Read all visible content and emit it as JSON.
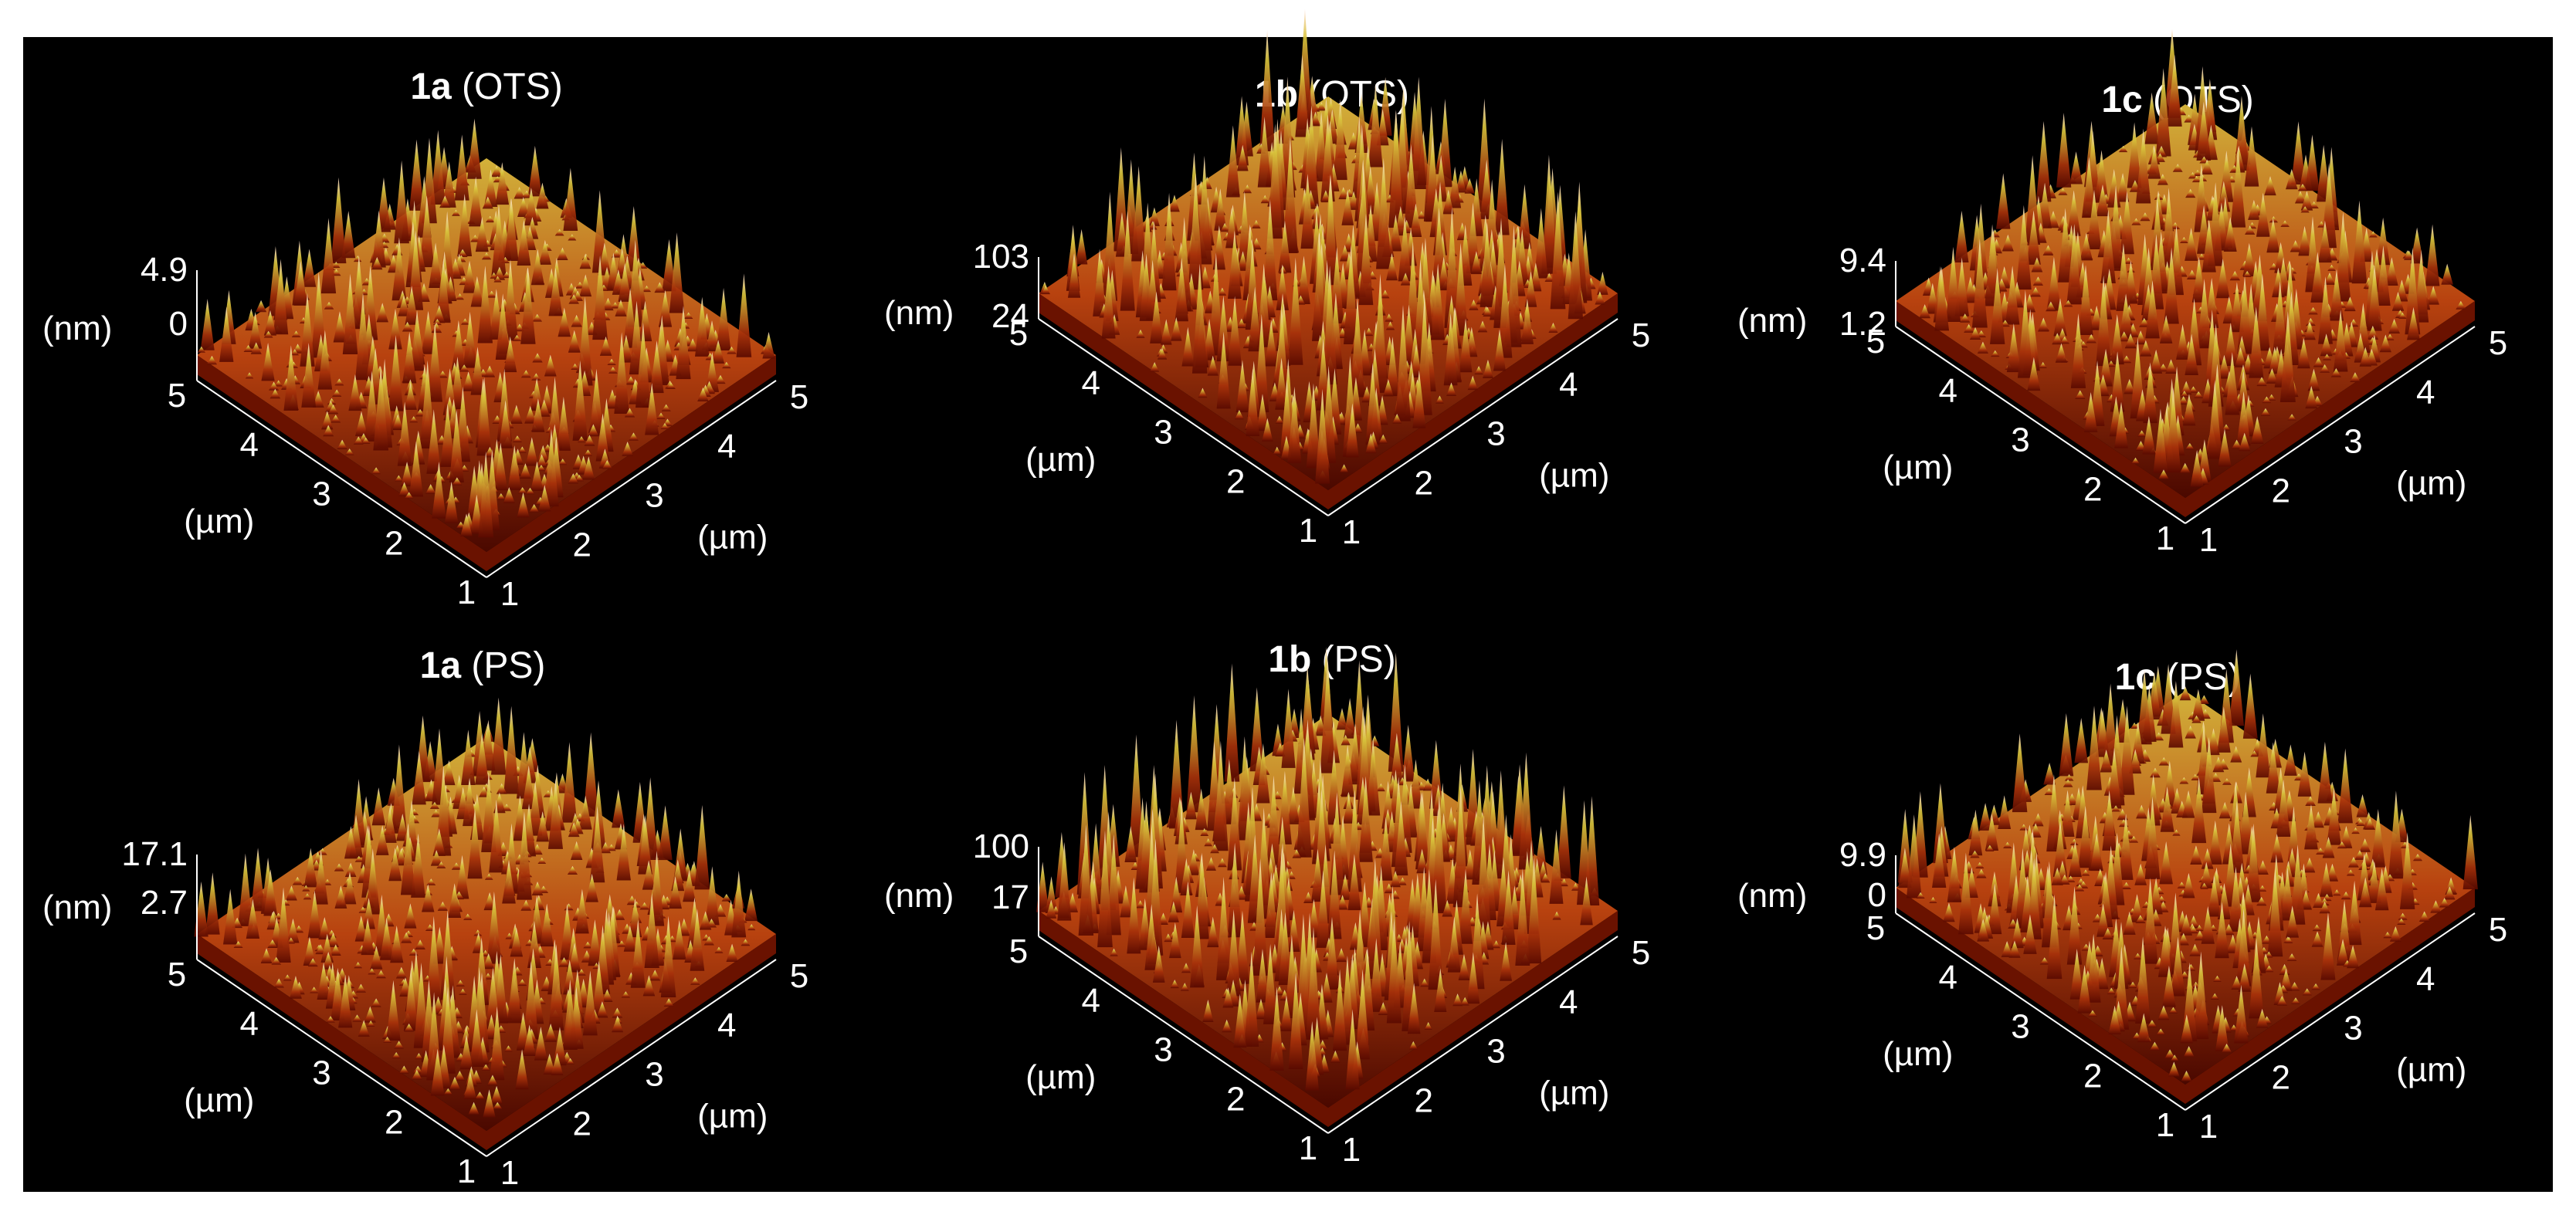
{
  "colors": {
    "background": "#000000",
    "text": "#ffffff",
    "surface_low": "#5a0a00",
    "surface_mid": "#b63a0c",
    "surface_high": "#c8b02a",
    "surface_peak": "#ffd6d0"
  },
  "panels": [
    {
      "label": "1a",
      "substrate": "(OTS)",
      "z_unit": "(nm)",
      "z_ticks": [
        "4.9",
        "0"
      ],
      "xy_unit": "(µm)",
      "left_axis_ticks": [
        "5",
        "4",
        "3",
        "2",
        "1"
      ],
      "right_axis_ticks": [
        "1",
        "2",
        "3",
        "4",
        "5"
      ]
    },
    {
      "label": "1b",
      "substrate": "(OTS)",
      "z_unit": "(nm)",
      "z_ticks": [
        "103",
        "24"
      ],
      "xy_unit": "(µm)",
      "left_axis_ticks": [
        "5",
        "4",
        "3",
        "2",
        "1"
      ],
      "right_axis_ticks": [
        "1",
        "2",
        "3",
        "4",
        "5"
      ]
    },
    {
      "label": "1c",
      "substrate": "(OTS)",
      "z_unit": "(nm)",
      "z_ticks": [
        "9.4",
        "1.2"
      ],
      "xy_unit": "(µm)",
      "left_axis_ticks": [
        "5",
        "4",
        "3",
        "2",
        "1"
      ],
      "right_axis_ticks": [
        "1",
        "2",
        "3",
        "4",
        "5"
      ]
    },
    {
      "label": "1a",
      "substrate": "(PS)",
      "z_unit": "(nm)",
      "z_ticks": [
        "17.1",
        "2.7"
      ],
      "xy_unit": "(µm)",
      "left_axis_ticks": [
        "5",
        "4",
        "3",
        "2",
        "1"
      ],
      "right_axis_ticks": [
        "1",
        "2",
        "3",
        "4",
        "5"
      ]
    },
    {
      "label": "1b",
      "substrate": "(PS)",
      "z_unit": "(nm)",
      "z_ticks": [
        "100",
        "17"
      ],
      "xy_unit": "(µm)",
      "left_axis_ticks": [
        "5",
        "4",
        "3",
        "2",
        "1"
      ],
      "right_axis_ticks": [
        "1",
        "2",
        "3",
        "4",
        "5"
      ]
    },
    {
      "label": "1c",
      "substrate": "(PS)",
      "z_unit": "(nm)",
      "z_ticks": [
        "9.9",
        "0"
      ],
      "xy_unit": "(µm)",
      "left_axis_ticks": [
        "5",
        "4",
        "3",
        "2",
        "1"
      ],
      "right_axis_ticks": [
        "1",
        "2",
        "3",
        "4",
        "5"
      ]
    }
  ]
}
